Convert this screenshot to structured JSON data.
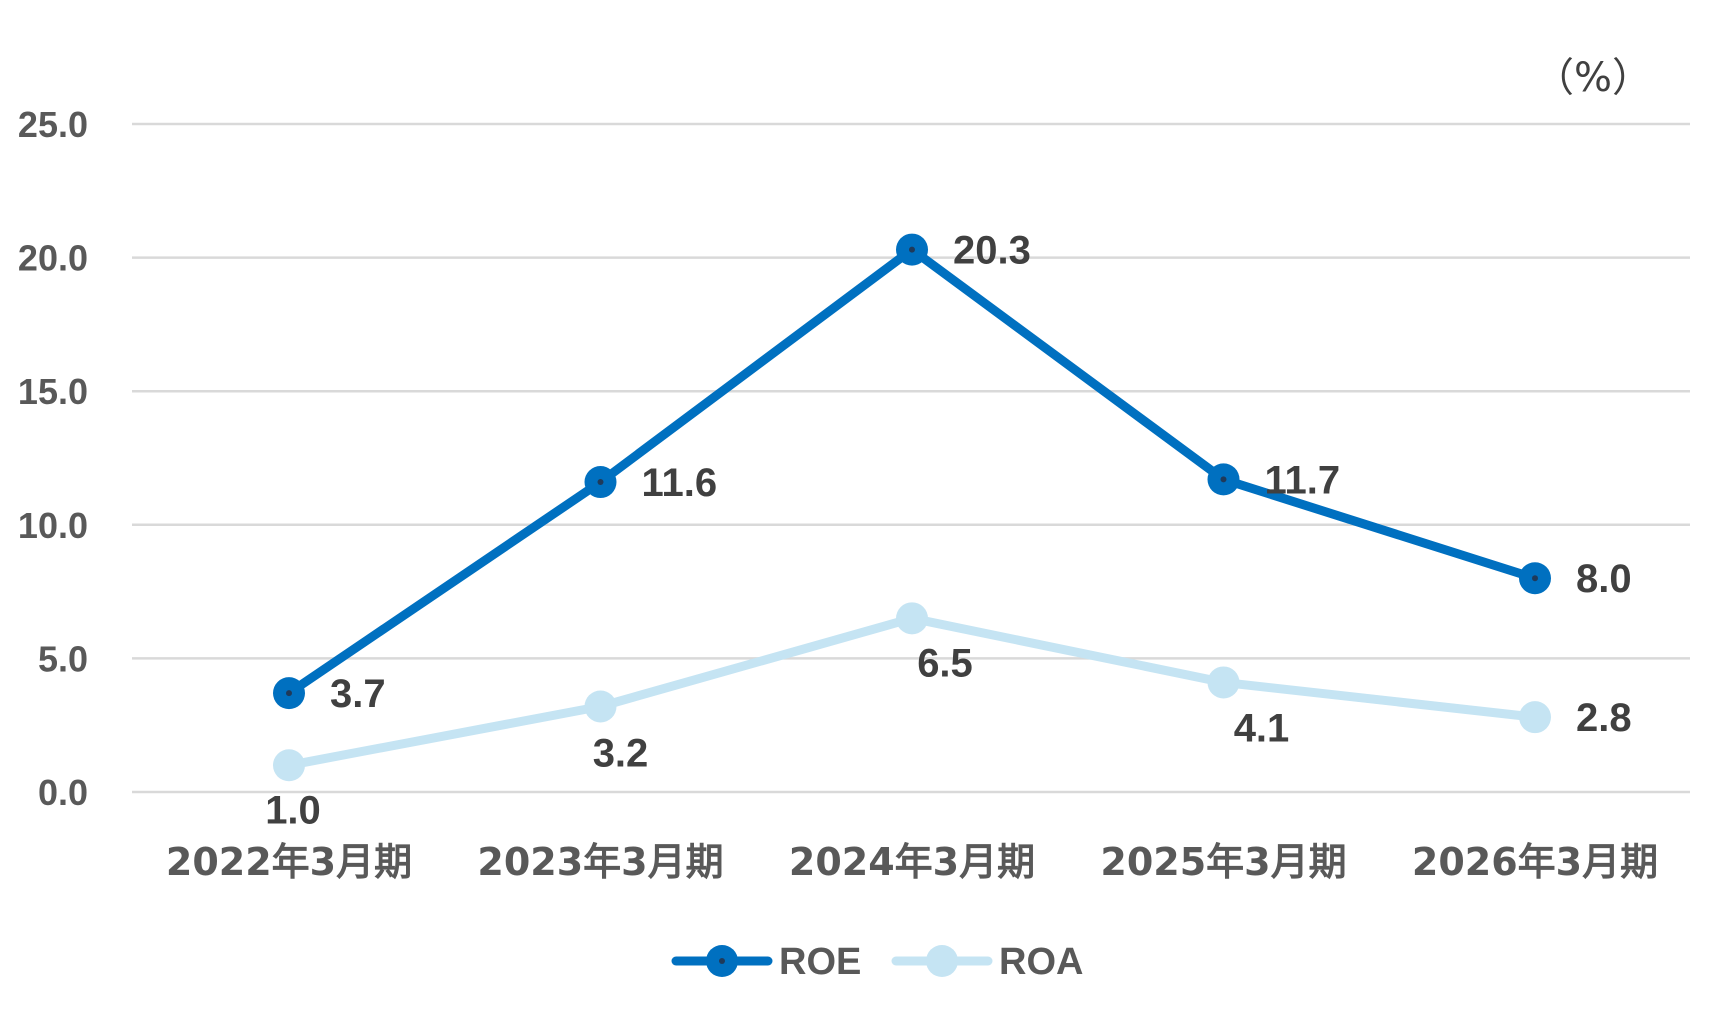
{
  "chart_data": {
    "type": "line",
    "unit": "（%）",
    "categories": [
      "2022年3月期",
      "2023年3月期",
      "2024年3月期",
      "2025年3月期",
      "2026年3月期"
    ],
    "ylim": [
      0,
      25
    ],
    "yticks": [
      "0.0",
      "5.0",
      "10.0",
      "15.0",
      "20.0",
      "25.0"
    ],
    "grid": true,
    "legend_position": "bottom",
    "series": [
      {
        "name": "ROE",
        "values": [
          3.7,
          11.6,
          20.3,
          11.7,
          8.0
        ],
        "labels": [
          "3.7",
          "11.6",
          "20.3",
          "11.7",
          "8.0"
        ],
        "color": "#0070c0",
        "dot_color": "#1f3a5a"
      },
      {
        "name": "ROA",
        "values": [
          1.0,
          3.2,
          6.5,
          4.1,
          2.8
        ],
        "labels": [
          "1.0",
          "3.2",
          "6.5",
          "4.1",
          "2.8"
        ],
        "color": "#c5e4f3",
        "dot_color": ""
      }
    ]
  }
}
